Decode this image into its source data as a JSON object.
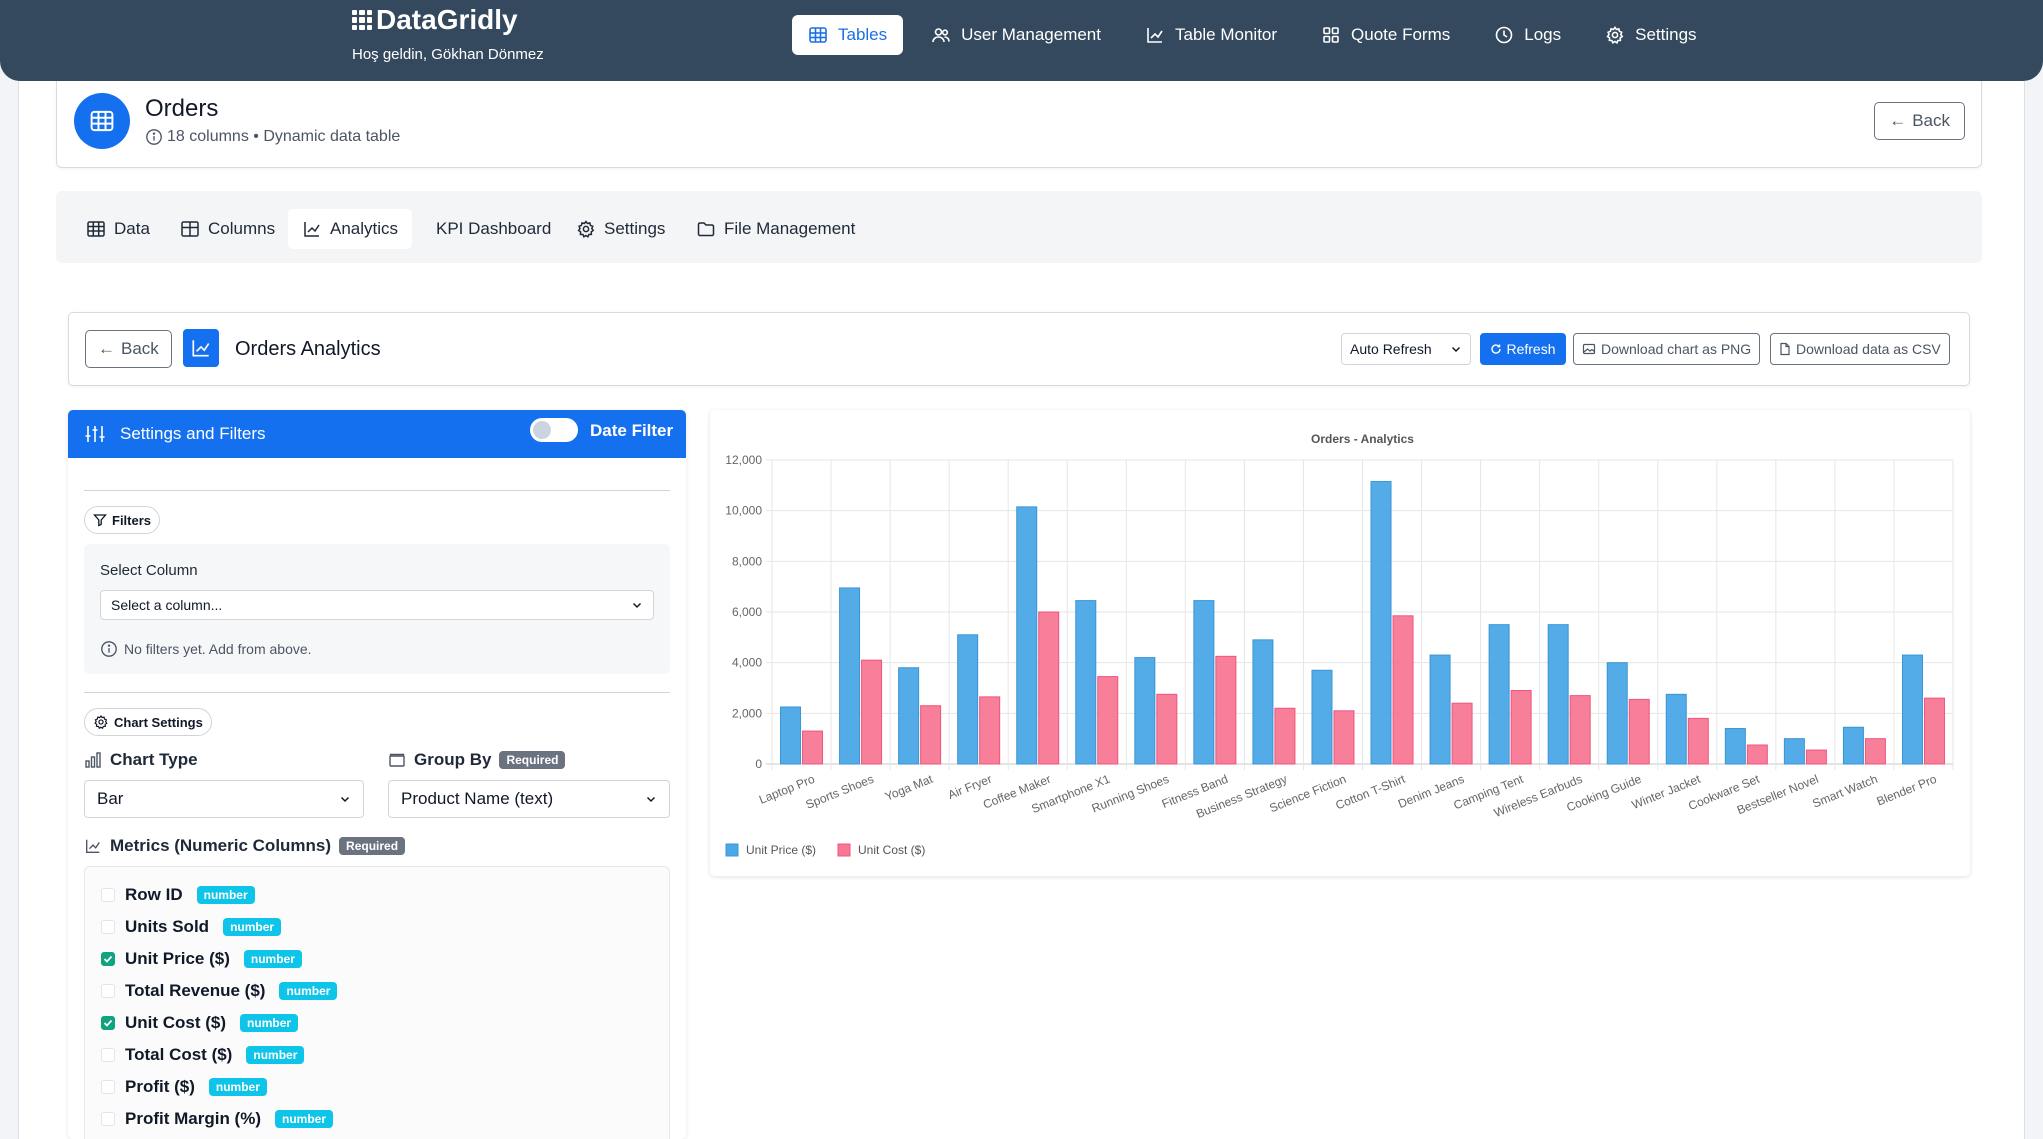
{
  "app": {
    "brand": "DataGridly",
    "welcome": "Hoş geldin, Gökhan Dönmez"
  },
  "nav": [
    {
      "label": "Tables",
      "icon": "table-icon",
      "active": true
    },
    {
      "label": "User Management",
      "icon": "users-icon",
      "active": false
    },
    {
      "label": "Table Monitor",
      "icon": "chart-line-icon",
      "active": false
    },
    {
      "label": "Quote Forms",
      "icon": "grid-icon",
      "active": false
    },
    {
      "label": "Logs",
      "icon": "clock-icon",
      "active": false
    },
    {
      "label": "Settings",
      "icon": "gear-icon",
      "active": false
    }
  ],
  "table": {
    "title": "Orders",
    "subtitle": "18 columns • Dynamic data table",
    "back_label": "Back"
  },
  "tabs": [
    {
      "label": "Data",
      "icon": "table-icon",
      "active": false
    },
    {
      "label": "Columns",
      "icon": "columns-icon",
      "active": false
    },
    {
      "label": "Analytics",
      "icon": "chart-line-icon",
      "active": true
    },
    {
      "label": "KPI Dashboard",
      "icon": "",
      "active": false
    },
    {
      "label": "Settings",
      "icon": "gear-icon",
      "active": false
    },
    {
      "label": "File Management",
      "icon": "folder-icon",
      "active": false
    }
  ],
  "analytics": {
    "back_label": "Back",
    "title": "Orders Analytics",
    "auto_refresh_label": "Auto Refresh",
    "refresh_label": "Refresh",
    "download_png_label": "Download chart as PNG",
    "download_csv_label": "Download data as CSV"
  },
  "settings_panel": {
    "title": "Settings and Filters",
    "date_filter_label": "Date Filter",
    "date_filter_on": false,
    "filters_pill": "Filters",
    "select_column_label": "Select Column",
    "select_column_placeholder": "Select a column...",
    "no_filters_hint": "No filters yet. Add from above.",
    "chart_settings_pill": "Chart Settings",
    "chart_type_label": "Chart Type",
    "chart_type_value": "Bar",
    "group_by_label": "Group By",
    "group_by_badge": "Required",
    "group_by_value": "Product Name (text)",
    "metrics_label": "Metrics (Numeric Columns)",
    "metrics_badge": "Required",
    "metrics": [
      {
        "label": "Row ID",
        "type": "number",
        "checked": false
      },
      {
        "label": "Units Sold",
        "type": "number",
        "checked": false
      },
      {
        "label": "Unit Price ($)",
        "type": "number",
        "checked": true
      },
      {
        "label": "Total Revenue ($)",
        "type": "number",
        "checked": false
      },
      {
        "label": "Unit Cost ($)",
        "type": "number",
        "checked": true
      },
      {
        "label": "Total Cost ($)",
        "type": "number",
        "checked": false
      },
      {
        "label": "Profit ($)",
        "type": "number",
        "checked": false
      },
      {
        "label": "Profit Margin (%)",
        "type": "number",
        "checked": false
      }
    ]
  },
  "colors": {
    "navbar": "#34495e",
    "primary": "#1570ef",
    "series_price": "#4aa8e6",
    "series_cost": "#f77894",
    "checkbox_on": "#10a37f",
    "badge_cyan": "#0fc4e9"
  },
  "chart_data": {
    "type": "bar",
    "title": "Orders - Analytics",
    "categories": [
      "Laptop Pro",
      "Sports Shoes",
      "Yoga Mat",
      "Air Fryer",
      "Coffee Maker",
      "Smartphone X1",
      "Running Shoes",
      "Fitness Band",
      "Business Strategy",
      "Science Fiction",
      "Cotton T-Shirt",
      "Denim Jeans",
      "Camping Tent",
      "Wireless Earbuds",
      "Cooking Guide",
      "Winter Jacket",
      "Cookware Set",
      "Bestseller Novel",
      "Smart Watch",
      "Blender Pro"
    ],
    "series": [
      {
        "name": "Unit Price ($)",
        "values": [
          2250,
          6950,
          3800,
          5100,
          10150,
          6450,
          4200,
          6450,
          4900,
          3700,
          11150,
          4300,
          5500,
          5500,
          4000,
          2750,
          1400,
          1000,
          1450,
          4300
        ]
      },
      {
        "name": "Unit Cost ($)",
        "values": [
          1300,
          4100,
          2300,
          2650,
          6000,
          3450,
          2750,
          4250,
          2200,
          2100,
          5850,
          2400,
          2900,
          2700,
          2550,
          1800,
          750,
          550,
          1000,
          2600
        ]
      }
    ],
    "ylim": [
      0,
      12000
    ],
    "yticks": [
      "0",
      "2,000",
      "4,000",
      "6,000",
      "8,000",
      "10,000",
      "12,000"
    ],
    "grid": true,
    "legend": "bottom-left"
  }
}
